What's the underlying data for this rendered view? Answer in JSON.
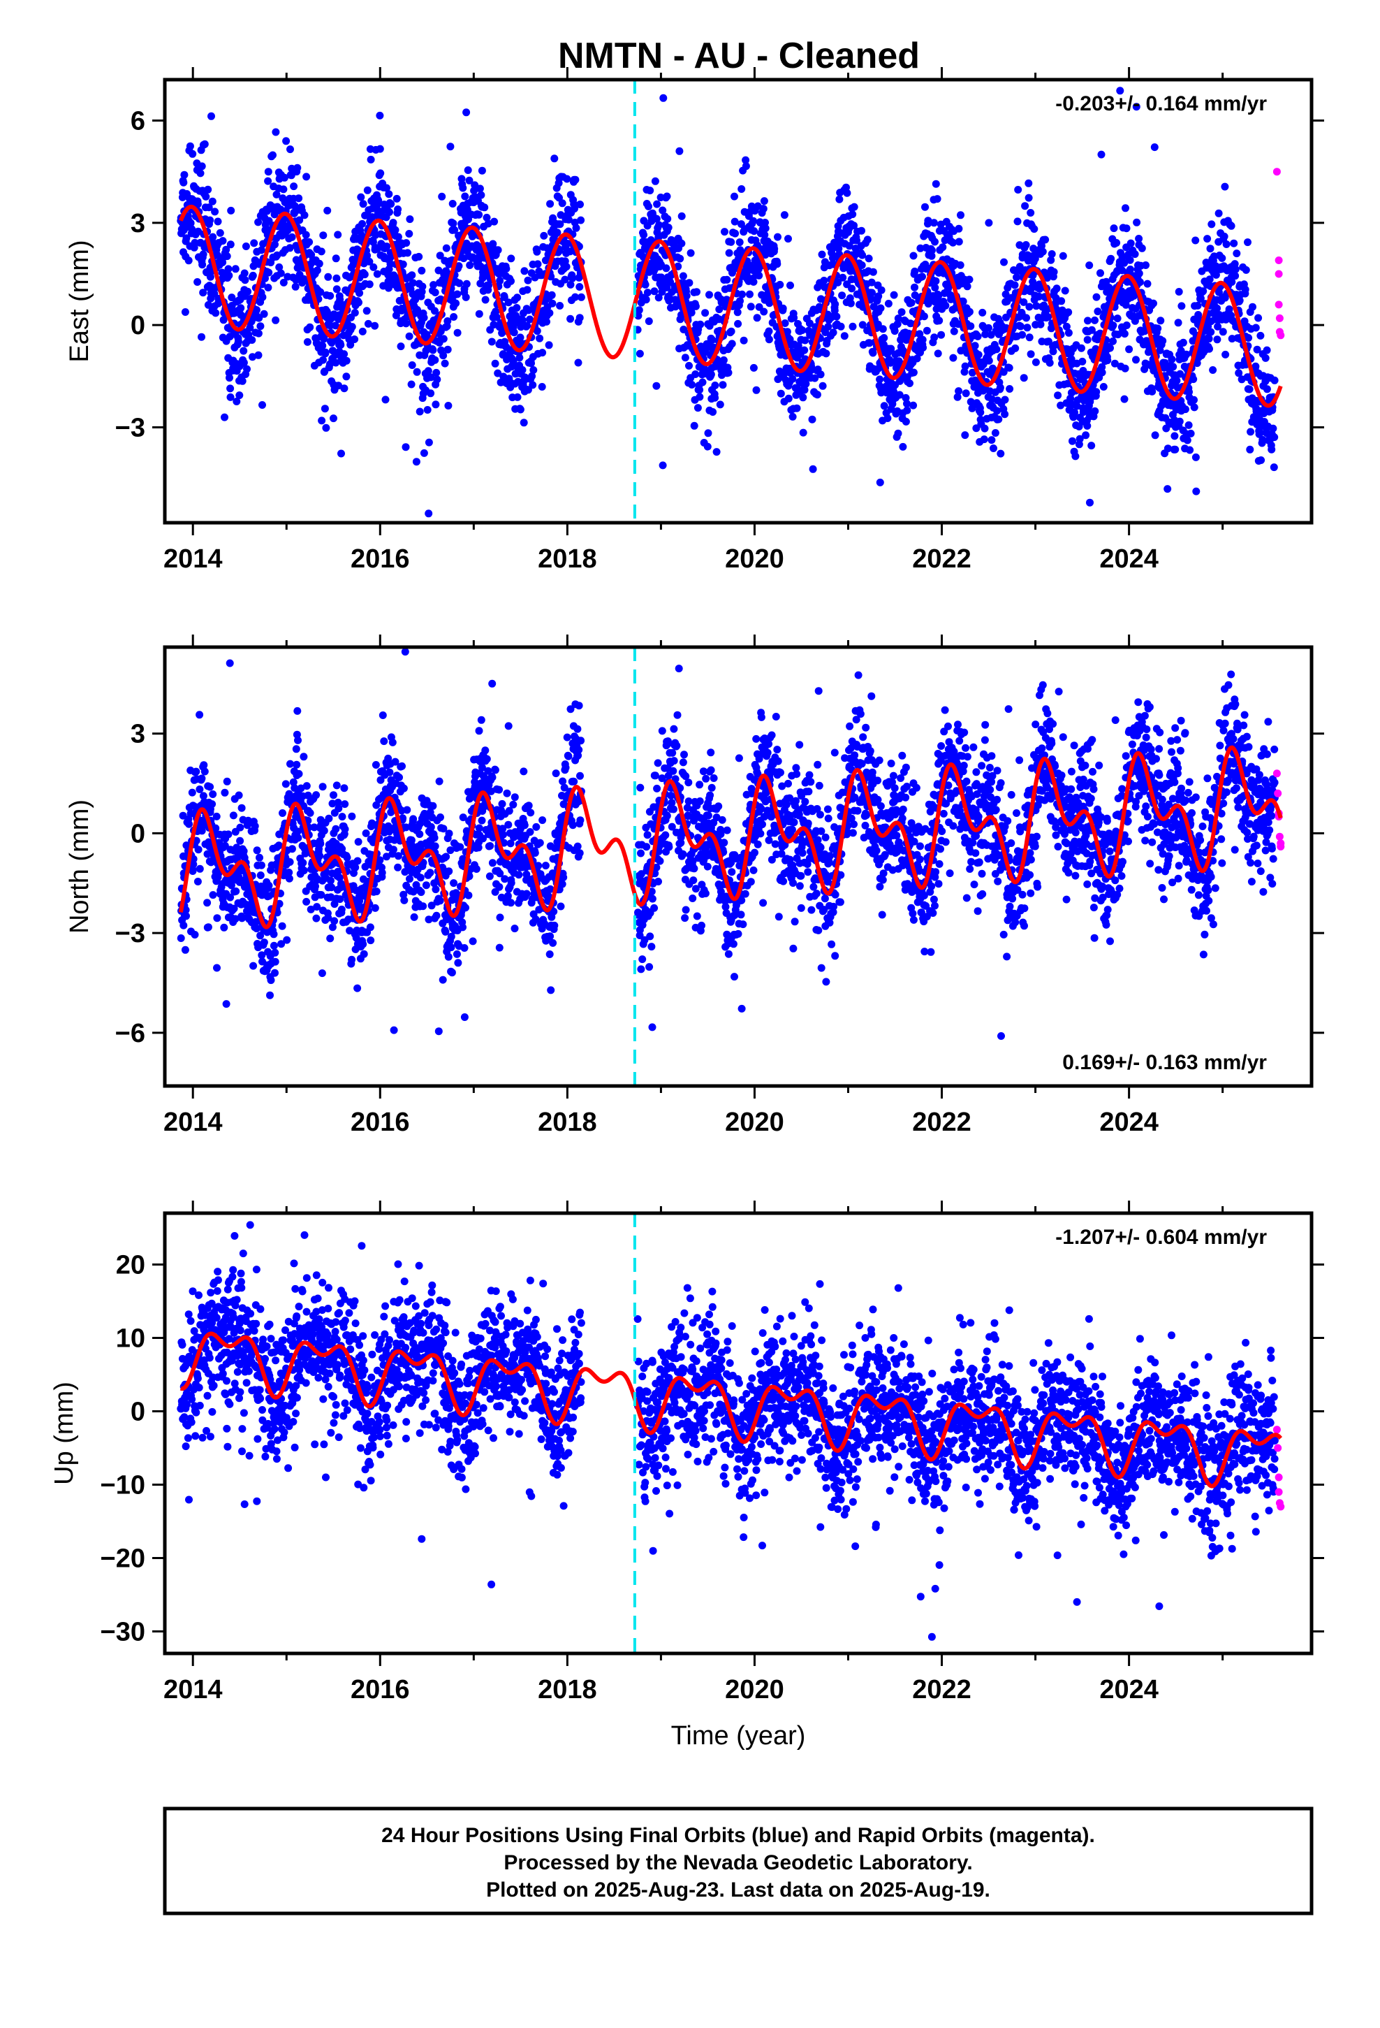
{
  "title": "NMTN  - AU - Cleaned",
  "footer": {
    "line1": "24 Hour Positions Using Final Orbits (blue) and Rapid Orbits (magenta).",
    "line2": "Processed by the Nevada Geodetic Laboratory.",
    "line3": "Plotted on 2025-Aug-23. Last data on 2025-Aug-19."
  },
  "colors": {
    "final_orbits": "#0000ff",
    "rapid_orbits": "#ff00ff",
    "model_fit": "#ff0000",
    "equipment_change": "#00e5ee"
  },
  "chart_data": [
    {
      "type": "scatter",
      "ylabel": "East (mm)",
      "xlabel": "",
      "rate_text": "-0.203+/- 0.164 mm/yr",
      "rate_position": "top-right",
      "xlim": [
        2013.7,
        2025.95
      ],
      "ylim": [
        -5.8,
        7.2
      ],
      "xticks": [
        2014,
        2016,
        2018,
        2020,
        2022,
        2024
      ],
      "yticks": [
        -3,
        0,
        3,
        6
      ],
      "ytick_labels": [
        "−3",
        "0",
        "3",
        "6"
      ],
      "gap": [
        2018.15,
        2018.75
      ],
      "series": [
        {
          "key": "final",
          "x_range": [
            2013.87,
            2025.56
          ],
          "values": "daily position estimates"
        },
        {
          "key": "rapid",
          "x": [
            2025.58,
            2025.6,
            2025.6,
            2025.6,
            2025.61,
            2025.61,
            2025.62
          ],
          "values": [
            4.5,
            1.9,
            1.5,
            0.6,
            0.2,
            -0.2,
            -0.3
          ]
        },
        {
          "key": "model",
          "offset": 0.6,
          "trend": -0.203,
          "reference_year": 2019.5,
          "annual_amplitude": 1.75,
          "annual_phase": 0.1,
          "semiannual_amplitude": 0.0
        }
      ],
      "equipment_change": 2018.72
    },
    {
      "type": "scatter",
      "ylabel": "North (mm)",
      "xlabel": "",
      "rate_text": "0.169+/- 0.163 mm/yr",
      "rate_position": "bottom-right",
      "xlim": [
        2013.7,
        2025.95
      ],
      "ylim": [
        -7.6,
        5.6
      ],
      "xticks": [
        2014,
        2016,
        2018,
        2020,
        2022,
        2024
      ],
      "yticks": [
        -6,
        -3,
        0,
        3
      ],
      "ytick_labels": [
        "−6",
        "−3",
        "0",
        "3"
      ],
      "gap": [
        2018.15,
        2018.75
      ],
      "series": [
        {
          "key": "final",
          "x_range": [
            2013.87,
            2025.56
          ],
          "values": "daily position estimates"
        },
        {
          "key": "rapid",
          "x": [
            2025.58,
            2025.59,
            2025.6,
            2025.6,
            2025.61,
            2025.62,
            2025.62
          ],
          "values": [
            1.8,
            1.2,
            0.6,
            0.5,
            -0.1,
            -0.3,
            -0.4
          ]
        },
        {
          "key": "model",
          "offset": -0.2,
          "trend": 0.169,
          "reference_year": 2019.5,
          "annual_amplitude": 1.2,
          "annual_phase": -1.2,
          "semiannual_amplitude": 0.9
        }
      ],
      "equipment_change": 2018.72
    },
    {
      "type": "scatter",
      "ylabel": "Up (mm)",
      "xlabel": "Time (year)",
      "rate_text": "-1.207+/- 0.604 mm/yr",
      "rate_position": "top-right",
      "xlim": [
        2013.7,
        2025.95
      ],
      "ylim": [
        -33,
        27
      ],
      "xticks": [
        2014,
        2016,
        2018,
        2020,
        2022,
        2024
      ],
      "yticks": [
        -30,
        -20,
        -10,
        0,
        10,
        20
      ],
      "ytick_labels": [
        "−30",
        "−20",
        "−10",
        "0",
        "10",
        "20"
      ],
      "gap": [
        2018.15,
        2018.75
      ],
      "series": [
        {
          "key": "final",
          "x_range": [
            2013.87,
            2025.56
          ],
          "values": "daily position estimates"
        },
        {
          "key": "rapid",
          "x": [
            2025.58,
            2025.59,
            2025.6,
            2025.6,
            2025.61,
            2025.62
          ],
          "values": [
            -2.5,
            -5,
            -9,
            -11,
            -12.5,
            -13
          ]
        },
        {
          "key": "model",
          "offset": 1.5,
          "trend": -1.207,
          "reference_year": 2019.5,
          "annual_amplitude": 3.2,
          "annual_phase": -2.4,
          "semiannual_amplitude": 2.0
        }
      ],
      "equipment_change": 2018.72
    }
  ]
}
